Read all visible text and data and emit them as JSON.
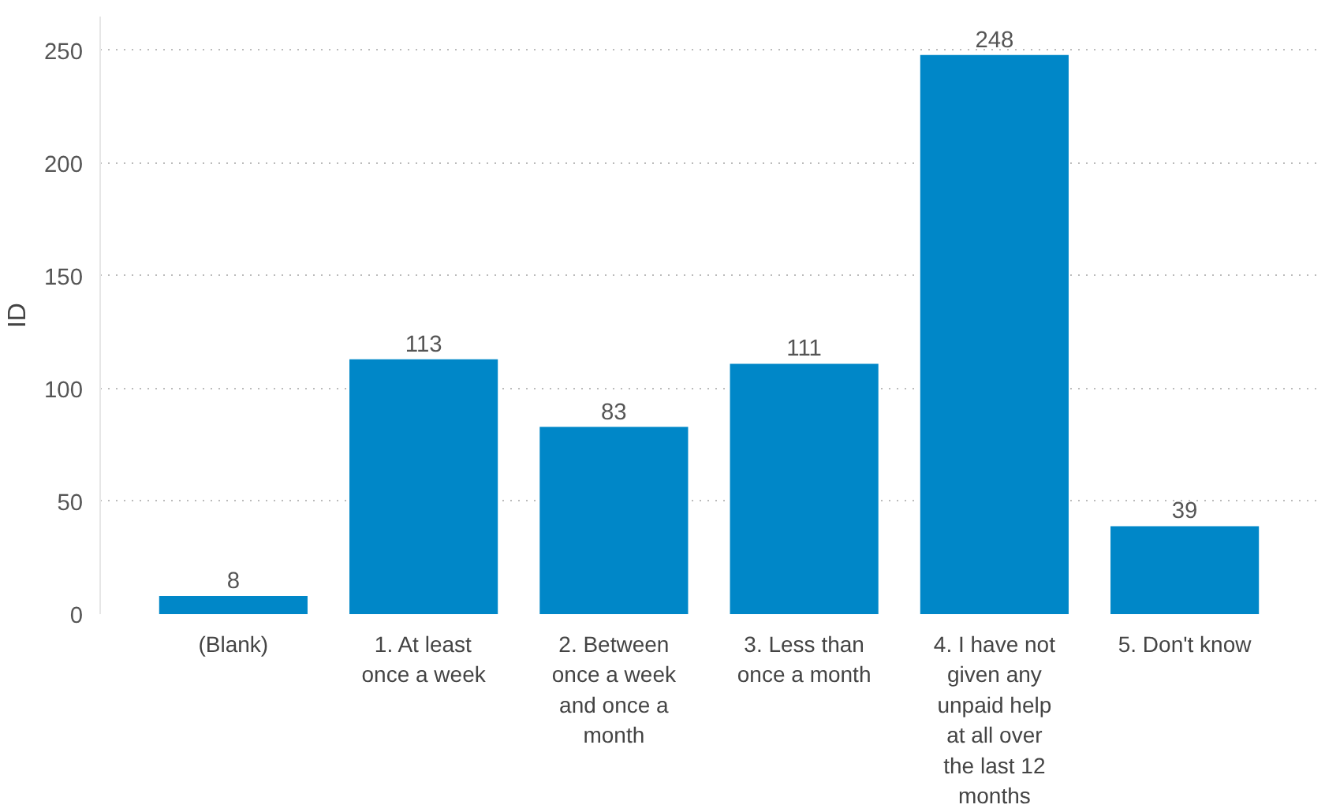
{
  "chart_data": {
    "type": "bar",
    "ylabel": "ID",
    "categories": [
      "(Blank)",
      "1. At least once a week",
      "2. Between once a week and once a month",
      "3. Less than once a month",
      "4. I have not given any unpaid help at all over the last 12 months",
      "5. Don't know"
    ],
    "values": [
      8,
      113,
      83,
      111,
      248,
      39
    ],
    "color": "#0087c8",
    "ylim": [
      0,
      265
    ],
    "yticks": [
      0,
      50,
      100,
      150,
      200,
      250
    ],
    "grid": "y",
    "data_labels": true
  }
}
